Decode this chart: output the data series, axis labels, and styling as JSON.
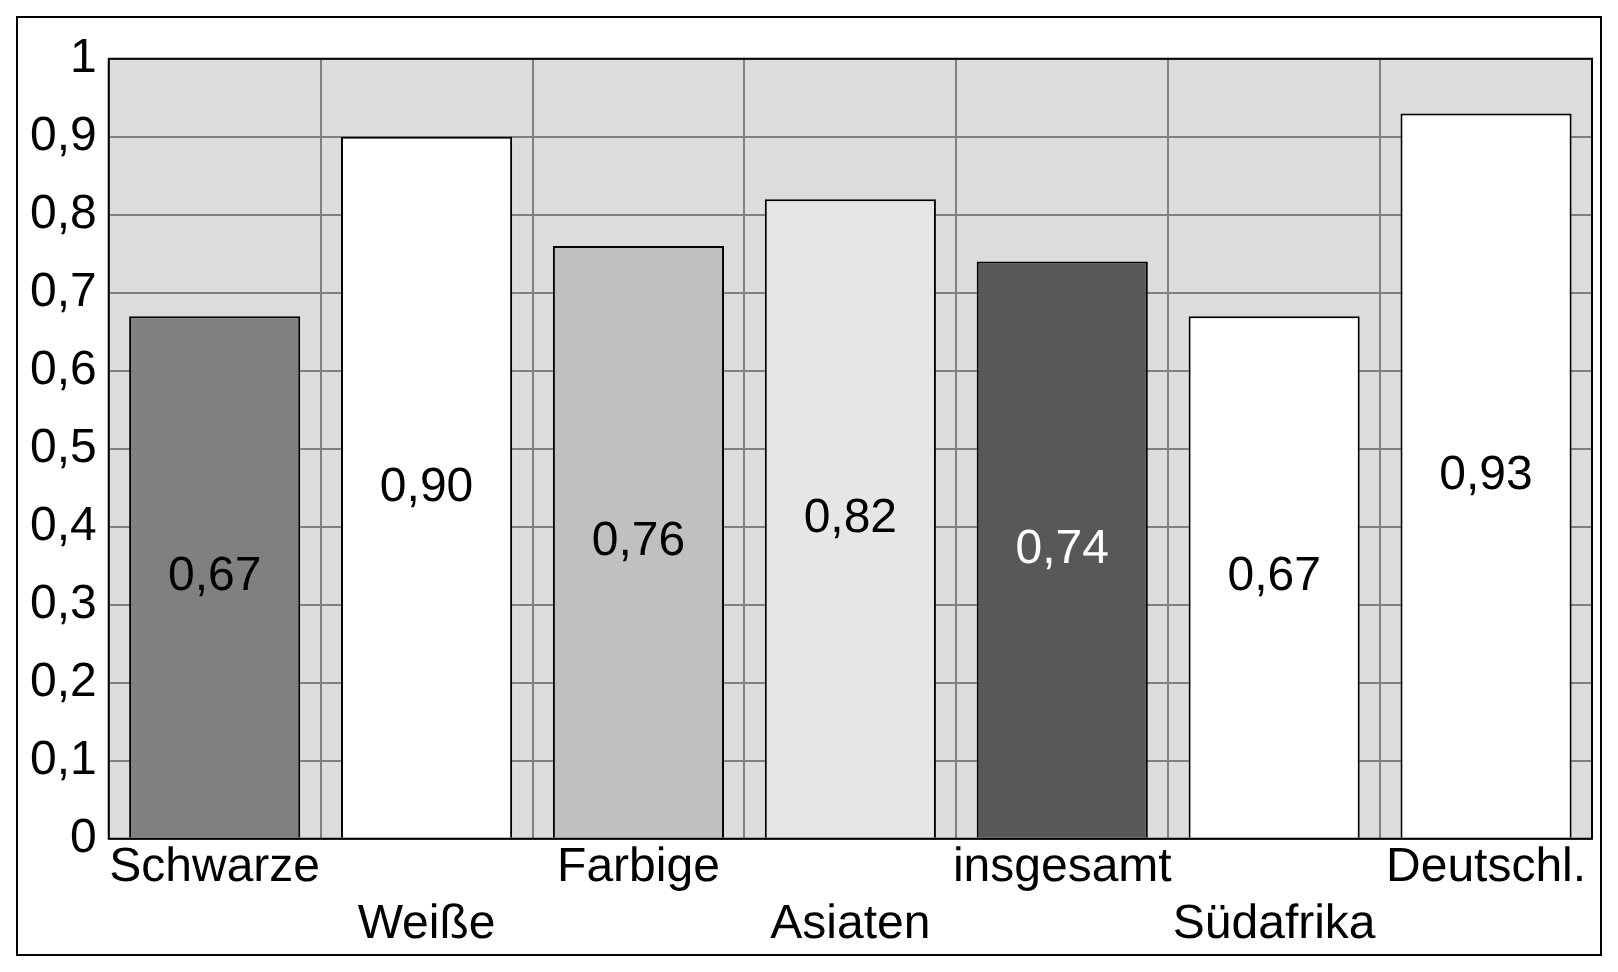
{
  "chart_data": {
    "type": "bar",
    "categories": [
      "Schwarze",
      "Weiße",
      "Farbige",
      "Asiaten",
      "insgesamt",
      "Südafrika",
      "Deutschl."
    ],
    "values": [
      0.67,
      0.9,
      0.76,
      0.82,
      0.74,
      0.67,
      0.93
    ],
    "value_labels": [
      "0,67",
      "0,90",
      "0,76",
      "0,82",
      "0,74",
      "0,67",
      "0,93"
    ],
    "colors": [
      "#808080",
      "#ffffff",
      "#c0c0c0",
      "#e6e6e6",
      "#5a5757",
      "#ffffff",
      "#ffffff"
    ],
    "ylim": [
      0,
      1
    ],
    "yticks": [
      0,
      {
        "value": 0.1,
        "label": "0,1"
      },
      {
        "value": 0.2,
        "label": "0,2"
      },
      {
        "value": 0.3,
        "label": "0,3"
      },
      {
        "value": 0.4,
        "label": "0,4"
      },
      {
        "value": 0.5,
        "label": "0,5"
      },
      {
        "value": 0.6,
        "label": "0,6"
      },
      {
        "value": 0.7,
        "label": "0,7"
      },
      {
        "value": 0.8,
        "label": "0,8"
      },
      {
        "value": 0.9,
        "label": "0,9"
      },
      1
    ],
    "grid": true
  }
}
